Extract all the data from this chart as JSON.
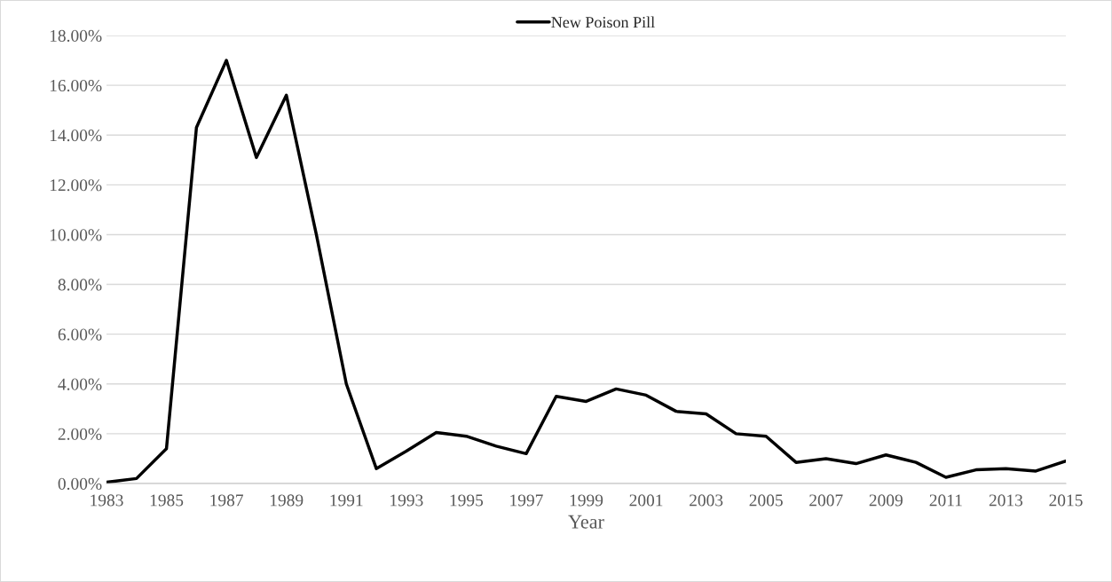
{
  "chart_data": {
    "type": "line",
    "xlabel": "Year",
    "categories": [
      "1983",
      null,
      "1985",
      null,
      "1987",
      null,
      "1989",
      null,
      "1991",
      null,
      "1993",
      null,
      "1995",
      null,
      "1997",
      null,
      "1999",
      null,
      "2001",
      null,
      "2003",
      null,
      "2005",
      null,
      "2007",
      null,
      "2009",
      null,
      "2011",
      null,
      "2013",
      null,
      "2015"
    ],
    "series": [
      {
        "name": "New Poison Pill",
        "color": "#000000",
        "values": [
          0.05,
          0.2,
          1.4,
          14.3,
          17.0,
          13.1,
          15.6,
          10.0,
          4.0,
          0.6,
          1.3,
          2.05,
          1.9,
          1.5,
          1.2,
          3.5,
          3.3,
          3.8,
          3.55,
          2.9,
          2.8,
          2.0,
          1.9,
          0.85,
          1.0,
          0.8,
          1.15,
          0.85,
          0.25,
          0.55,
          0.6,
          0.5,
          0.9
        ]
      }
    ],
    "ylim": [
      0,
      18
    ],
    "yticks": [
      {
        "value": 0,
        "label": "0.00%"
      },
      {
        "value": 2,
        "label": "2.00%"
      },
      {
        "value": 4,
        "label": "4.00%"
      },
      {
        "value": 6,
        "label": "6.00%"
      },
      {
        "value": 8,
        "label": "8.00%"
      },
      {
        "value": 10,
        "label": "10.00%"
      },
      {
        "value": 12,
        "label": "12.00%"
      },
      {
        "value": 14,
        "label": "14.00%"
      },
      {
        "value": 16,
        "label": "16.00%"
      },
      {
        "value": 18,
        "label": "18.00%"
      }
    ],
    "grid": "y",
    "legend": "top",
    "marker": "none",
    "line_style": "solid"
  }
}
